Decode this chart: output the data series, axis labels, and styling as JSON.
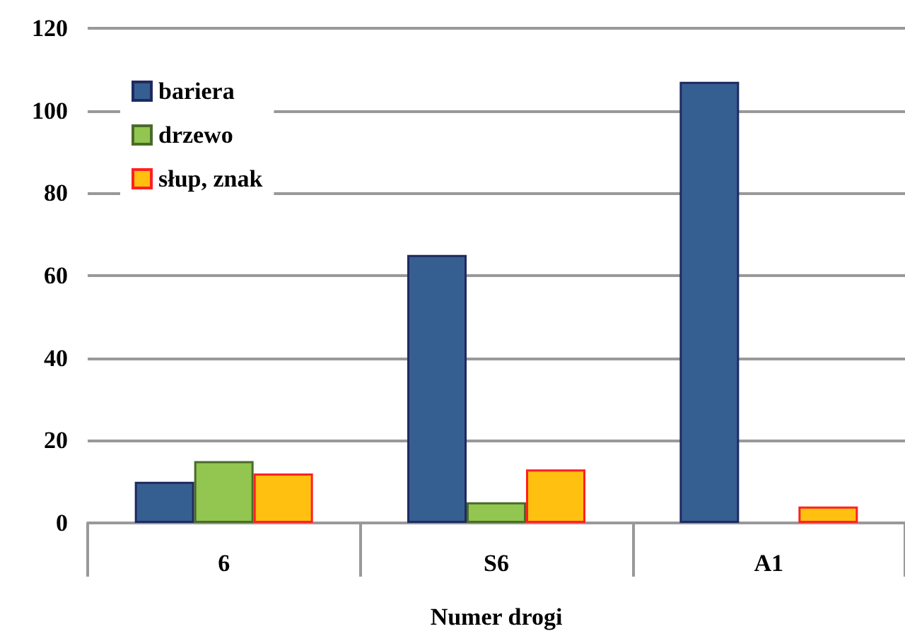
{
  "chart_data": {
    "type": "bar",
    "xlabel": "Numer drogi",
    "categories": [
      "6",
      "S6",
      "A1"
    ],
    "series": [
      {
        "name": "bariera",
        "color": "#365f91",
        "values": [
          10,
          65,
          107
        ]
      },
      {
        "name": "drzewo",
        "color": "#92c650",
        "values": [
          15,
          5,
          0
        ]
      },
      {
        "name": "słup, znak",
        "color": "#ffc010",
        "values": [
          12,
          13,
          4
        ]
      }
    ],
    "ylim": [
      0,
      120
    ],
    "yticks": [
      0,
      20,
      40,
      60,
      80,
      100,
      120
    ],
    "grid": "y",
    "legend": "top left"
  }
}
